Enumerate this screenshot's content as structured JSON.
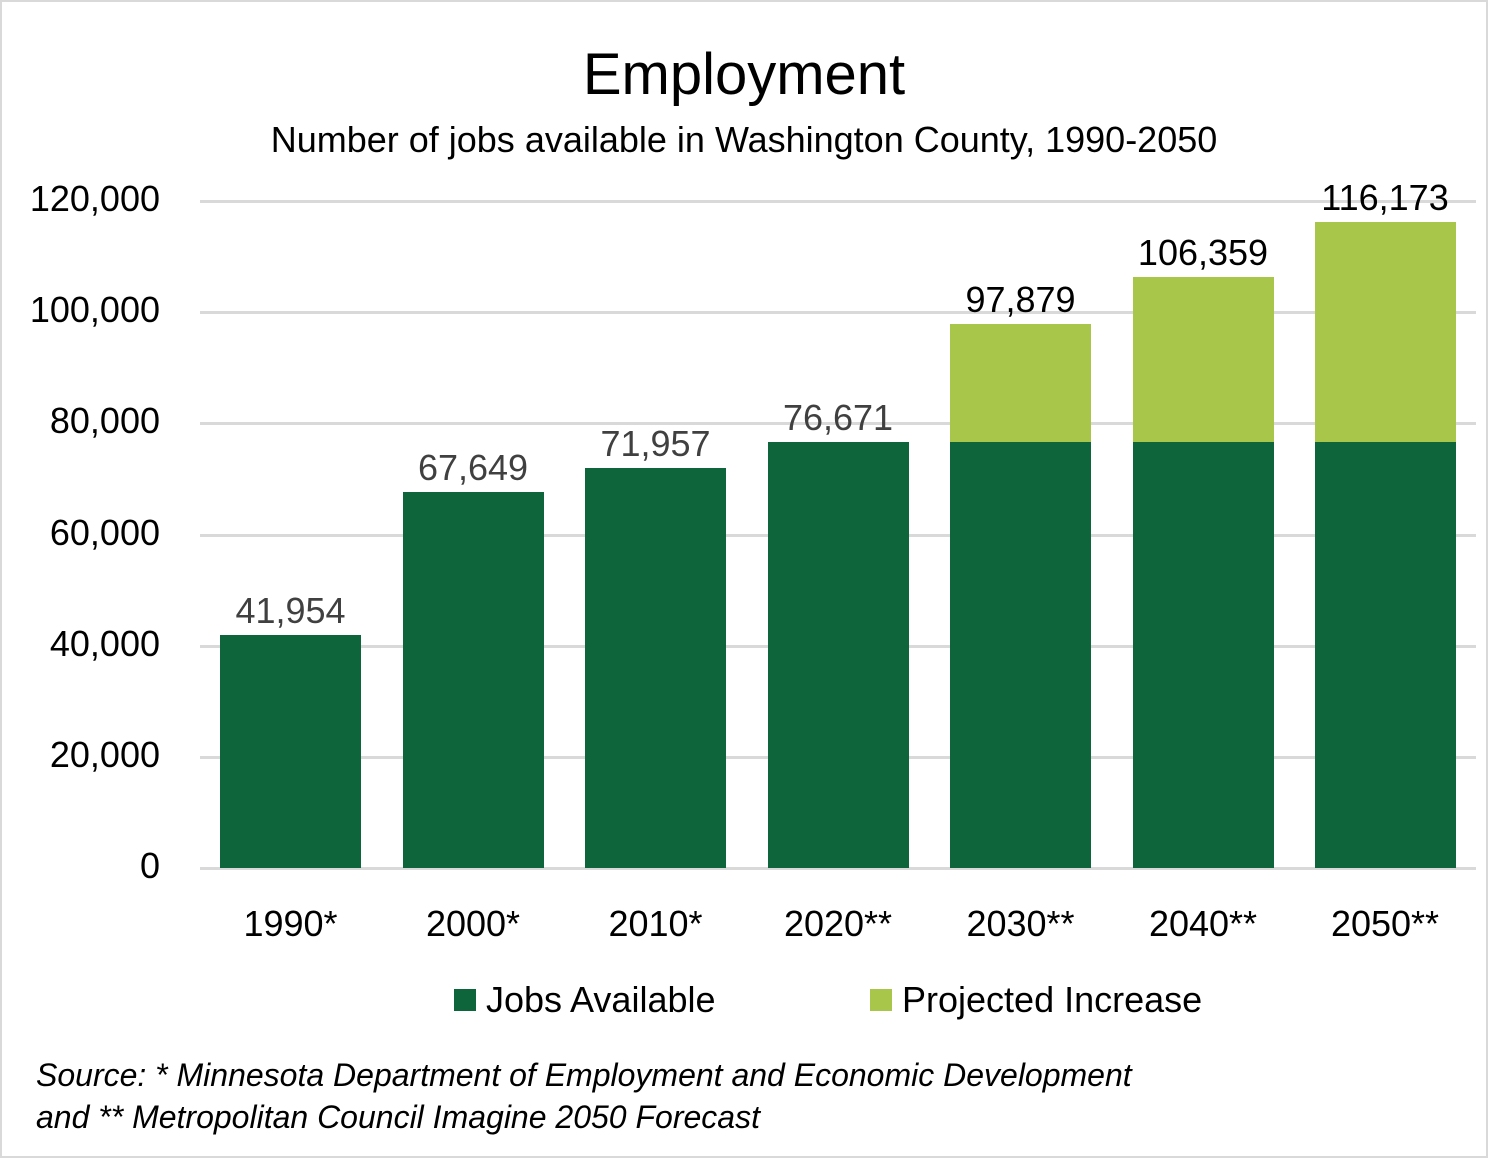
{
  "chart_data": {
    "type": "bar",
    "stacked": true,
    "title": "Employment",
    "subtitle": "Number of jobs available in Washington County, 1990-2050",
    "xlabel": "",
    "ylabel": "",
    "ylim": [
      0,
      120000
    ],
    "yticks": [
      "0",
      "20,000",
      "40,000",
      "60,000",
      "80,000",
      "100,000",
      "120,000"
    ],
    "grid": true,
    "legend_position": "bottom",
    "categories": [
      "1990*",
      "2000*",
      "2010*",
      "2020**",
      "2030**",
      "2040**",
      "2050**"
    ],
    "series": [
      {
        "name": "Jobs Available",
        "color": "#0e653c",
        "values": [
          41954,
          67649,
          71957,
          76671,
          76671,
          76671,
          76671
        ]
      },
      {
        "name": "Projected Increase",
        "color": "#a8c64a",
        "values": [
          0,
          0,
          0,
          0,
          21208,
          29688,
          39502
        ]
      }
    ],
    "totals": [
      41954,
      67649,
      71957,
      76671,
      97879,
      106359,
      116173
    ],
    "data_labels": [
      "41,954",
      "67,649",
      "71,957",
      "76,671",
      "97,879",
      "106,359",
      "116,173"
    ],
    "source": "Source: * Minnesota Department of Employment and Economic Development and ** Metropolitan Council Imagine 2050 Forecast"
  },
  "header": {
    "title": "Employment",
    "subtitle": "Number of jobs available in Washington County, 1990-2050"
  },
  "axis": {
    "y": [
      "0",
      "20,000",
      "40,000",
      "60,000",
      "80,000",
      "100,000",
      "120,000"
    ],
    "x": [
      "1990*",
      "2000*",
      "2010*",
      "2020**",
      "2030**",
      "2040**",
      "2050**"
    ]
  },
  "labels": [
    "41,954",
    "67,649",
    "71,957",
    "76,671",
    "97,879",
    "106,359",
    "116,173"
  ],
  "legend": [
    {
      "label": "Jobs Available",
      "color": "#0e653c"
    },
    {
      "label": "Projected Increase",
      "color": "#a8c64a"
    }
  ],
  "colors": {
    "jobs": "#0e653c",
    "projected": "#a8c64a",
    "historical_label": "#404040",
    "projected_label": "#000000",
    "grid": "#d9d9d9"
  },
  "footer": {
    "source_line1": "Source: * Minnesota Department of Employment and Economic Development",
    "source_line2": "and ** Metropolitan Council Imagine 2050 Forecast"
  }
}
